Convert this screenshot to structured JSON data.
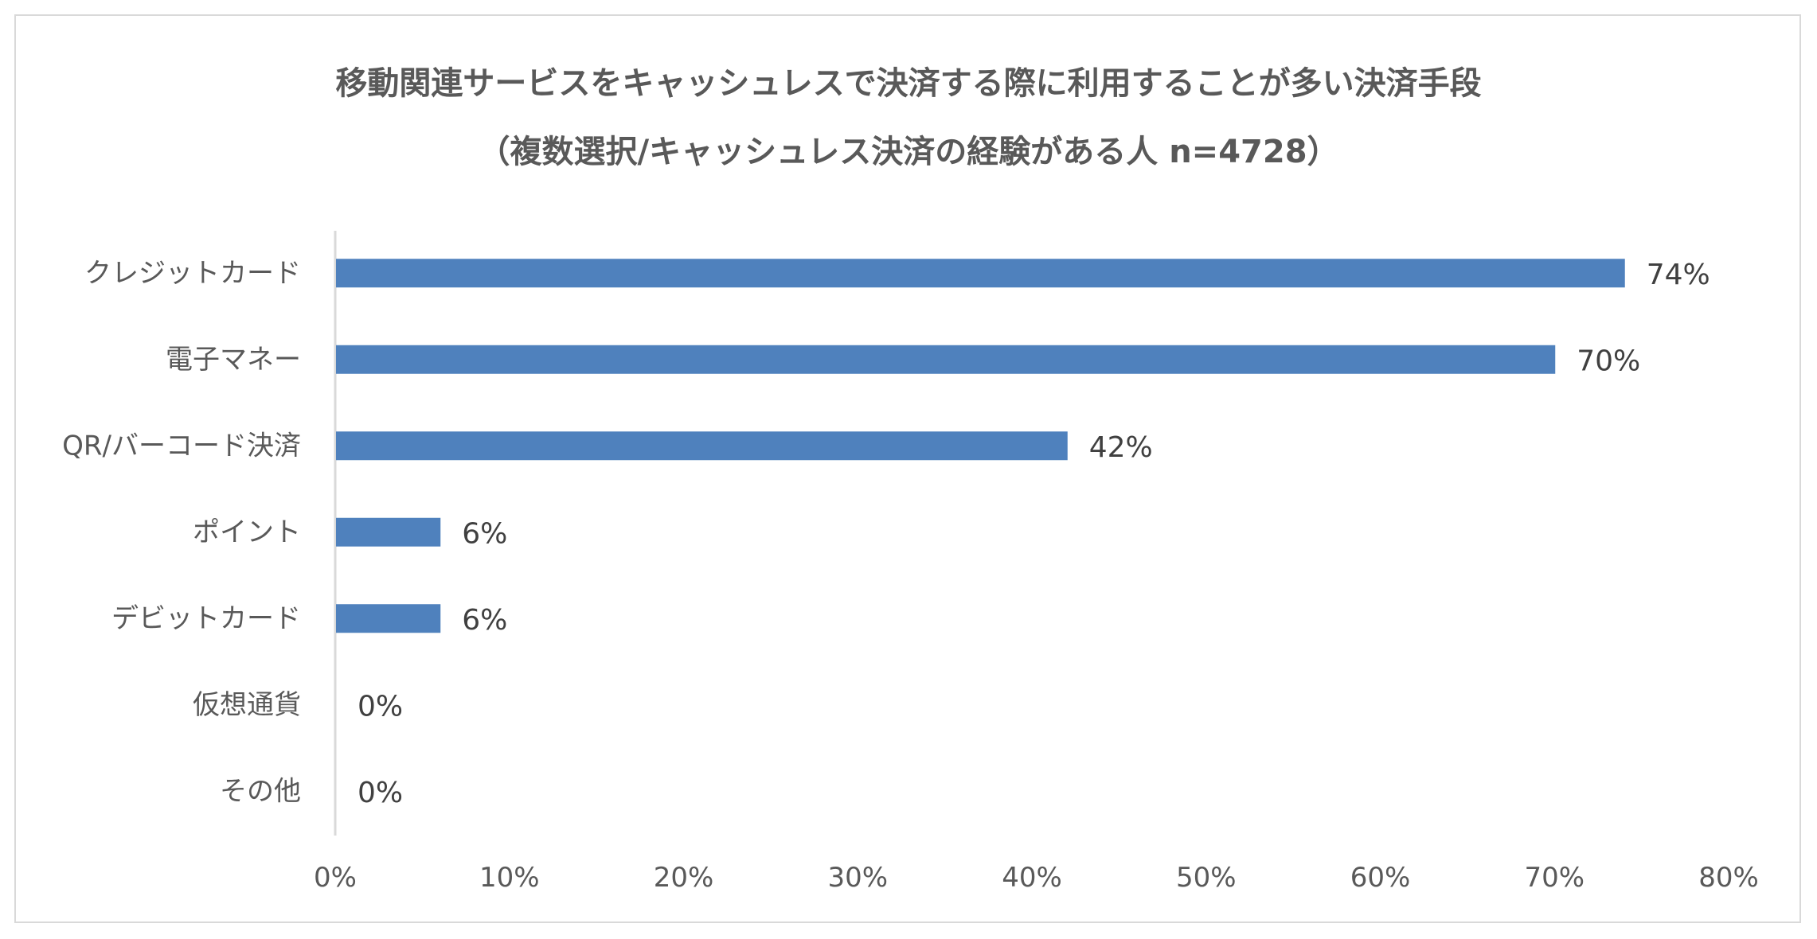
{
  "chart_data": {
    "type": "bar",
    "orientation": "horizontal",
    "title": "移動関連サービスをキャッシュレスで決済する際に利用することが多い決済手段",
    "subtitle": "（複数選択/キャッシュレス決済の経験がある人 n=4728）",
    "categories": [
      "クレジットカード",
      "電子マネー",
      "QR/バーコード決済",
      "ポイント",
      "デビットカード",
      "仮想通貨",
      "その他"
    ],
    "values": [
      74,
      70,
      42,
      6,
      6,
      0,
      0
    ],
    "value_labels": [
      "74%",
      "70%",
      "42%",
      "6%",
      "6%",
      "0%",
      "0%"
    ],
    "xlim": [
      0,
      80
    ],
    "x_ticks": [
      "0%",
      "10%",
      "20%",
      "30%",
      "40%",
      "50%",
      "60%",
      "70%",
      "80%"
    ],
    "bar_color": "#4f81bd",
    "grid": false,
    "legend": "none"
  }
}
